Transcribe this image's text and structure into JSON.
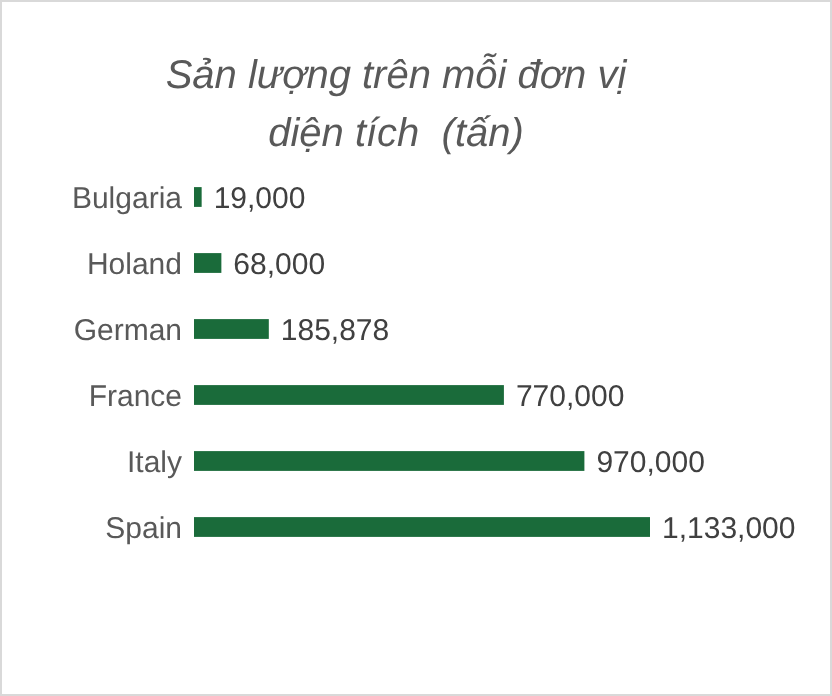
{
  "chart_data": {
    "type": "bar",
    "orientation": "horizontal",
    "title": "Sản lượng trên mỗi đơn vị diện tích  (tấn)",
    "categories": [
      "Bulgaria",
      "Holand",
      "German",
      "France",
      "Italy",
      "Spain"
    ],
    "series": [
      {
        "color": "#1a6b3a",
        "values": [
          19000,
          68000,
          185878,
          770000,
          970000,
          1133000
        ],
        "value_labels": [
          "19,000",
          "68,000",
          "185,878",
          "770,000",
          "970,000",
          "1,133,000"
        ]
      }
    ]
  }
}
